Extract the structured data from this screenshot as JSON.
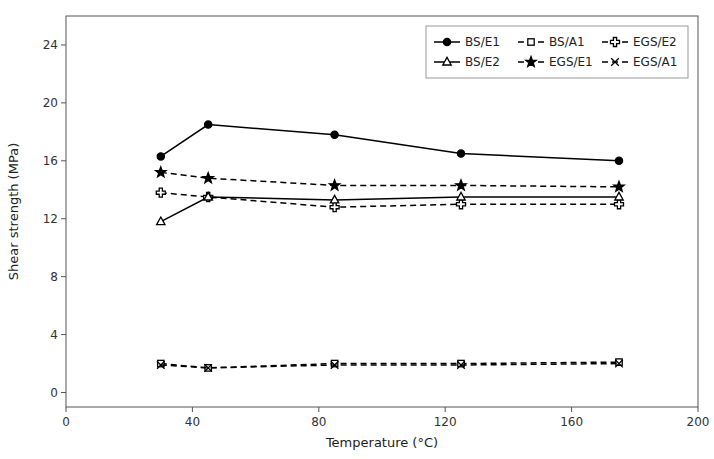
{
  "chart_data": {
    "type": "line",
    "x": [
      30,
      45,
      85,
      125,
      175
    ],
    "xlabel": "Temperature (°C)",
    "ylabel": "Shear strength (MPa)",
    "xlim": [
      0,
      200
    ],
    "ylim": [
      -1,
      26
    ],
    "xticks": [
      0,
      40,
      80,
      120,
      160,
      200
    ],
    "yticks": [
      0,
      4,
      8,
      12,
      16,
      20,
      24
    ],
    "grid": false,
    "legend": "upper right",
    "series": [
      {
        "name": "BS/E1",
        "color": "black",
        "marker": "circle",
        "line_style": "solid",
        "values": [
          16.3,
          18.5,
          17.8,
          16.5,
          16.0
        ]
      },
      {
        "name": "BS/A1",
        "color": "black",
        "marker": "square",
        "line_style": "dashed",
        "values": [
          2.0,
          1.7,
          2.0,
          2.0,
          2.1
        ]
      },
      {
        "name": "EGS/E2",
        "color": "black",
        "marker": "plus",
        "line_style": "dashed",
        "values": [
          13.8,
          13.5,
          12.8,
          13.0,
          13.0
        ]
      },
      {
        "name": "BS/E2",
        "color": "black",
        "marker": "triangle",
        "line_style": "solid",
        "values": [
          11.8,
          13.5,
          13.3,
          13.5,
          13.5
        ]
      },
      {
        "name": "EGS/E1",
        "color": "black",
        "marker": "star",
        "line_style": "dashed",
        "values": [
          15.2,
          14.8,
          14.3,
          14.3,
          14.2
        ]
      },
      {
        "name": "EGS/A1",
        "color": "black",
        "marker": "x",
        "line_style": "dashed",
        "values": [
          1.9,
          1.7,
          1.9,
          1.9,
          2.0
        ]
      }
    ]
  }
}
